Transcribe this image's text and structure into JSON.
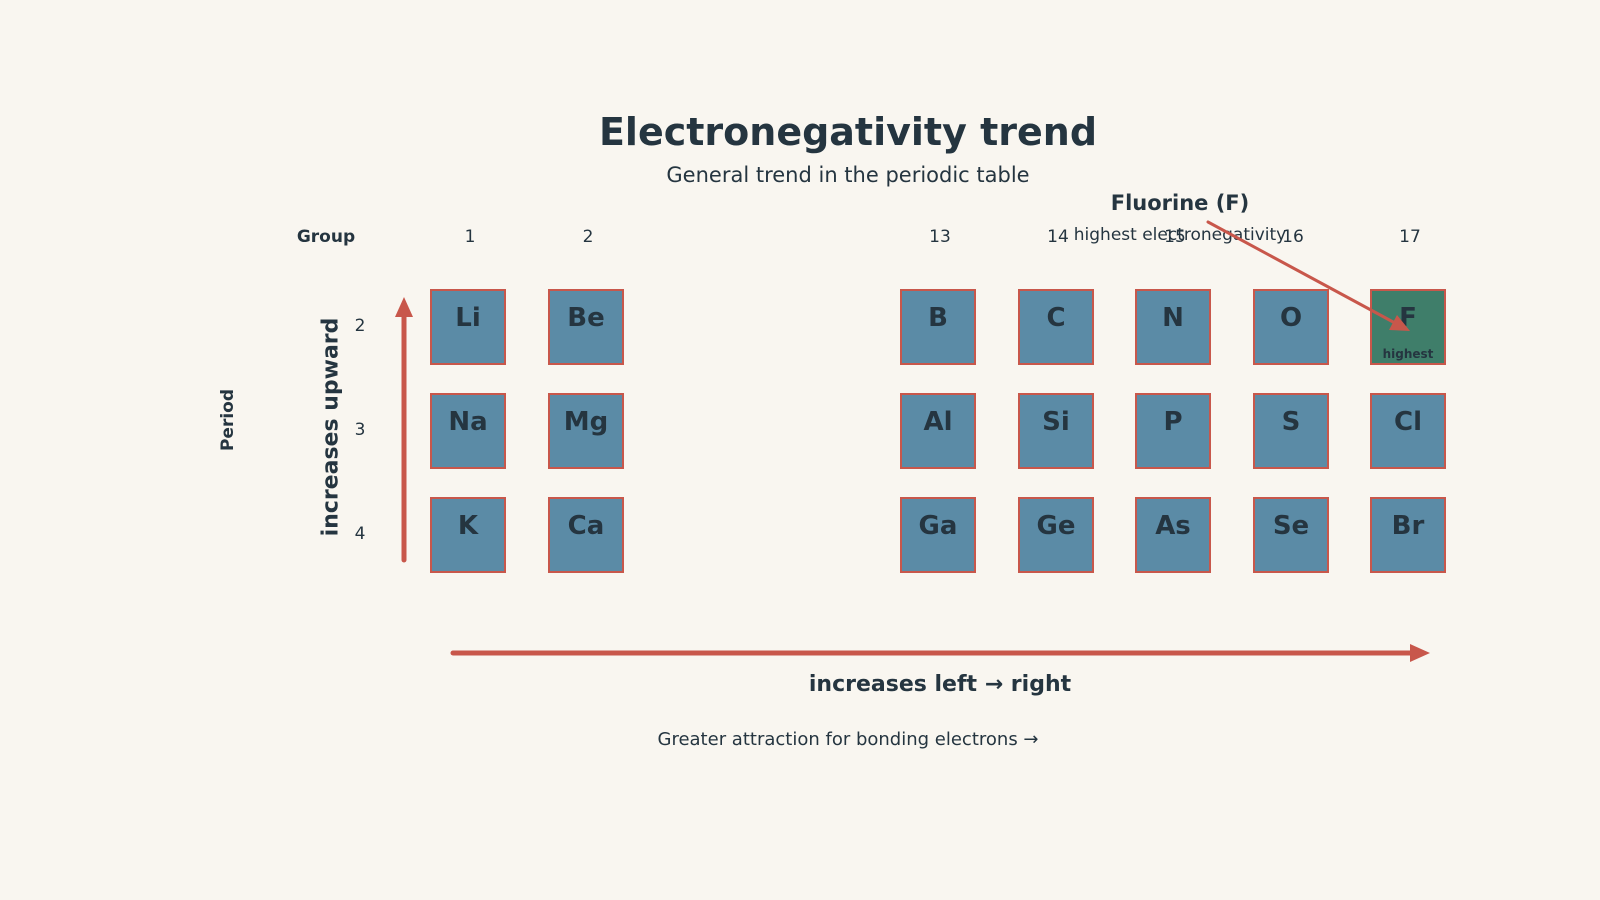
{
  "title": "Electronegativity trend",
  "subtitle": "General trend in the periodic table",
  "group_header": "Group",
  "groups": [
    {
      "label": "1"
    },
    {
      "label": "2"
    },
    {
      "label": "13"
    },
    {
      "label": "14"
    },
    {
      "label": "15"
    },
    {
      "label": "16"
    },
    {
      "label": "17"
    }
  ],
  "period_header": "Period",
  "periods": [
    {
      "label": "2",
      "elements": [
        "Li",
        "Be",
        "B",
        "C",
        "N",
        "O",
        "F"
      ]
    },
    {
      "label": "3",
      "elements": [
        "Na",
        "Mg",
        "Al",
        "Si",
        "P",
        "S",
        "Cl"
      ]
    },
    {
      "label": "4",
      "elements": [
        "K",
        "Ca",
        "Ga",
        "Ge",
        "As",
        "Se",
        "Br"
      ]
    }
  ],
  "highlight": {
    "symbol": "F",
    "tag": "highest",
    "callout_title": "Fluorine (F)",
    "callout_subtitle": "highest electronegativity"
  },
  "upward_label": "increases upward",
  "rightward_label": "increases left → right",
  "footer_note": "Greater attraction for bonding electrons  →",
  "colors": {
    "background": "#f9f6f0",
    "cell": "#5b8ba6",
    "highlight_cell": "#3f7e6a",
    "cell_border": "#c8574b",
    "arrow": "#c8574b",
    "text": "#253540"
  }
}
